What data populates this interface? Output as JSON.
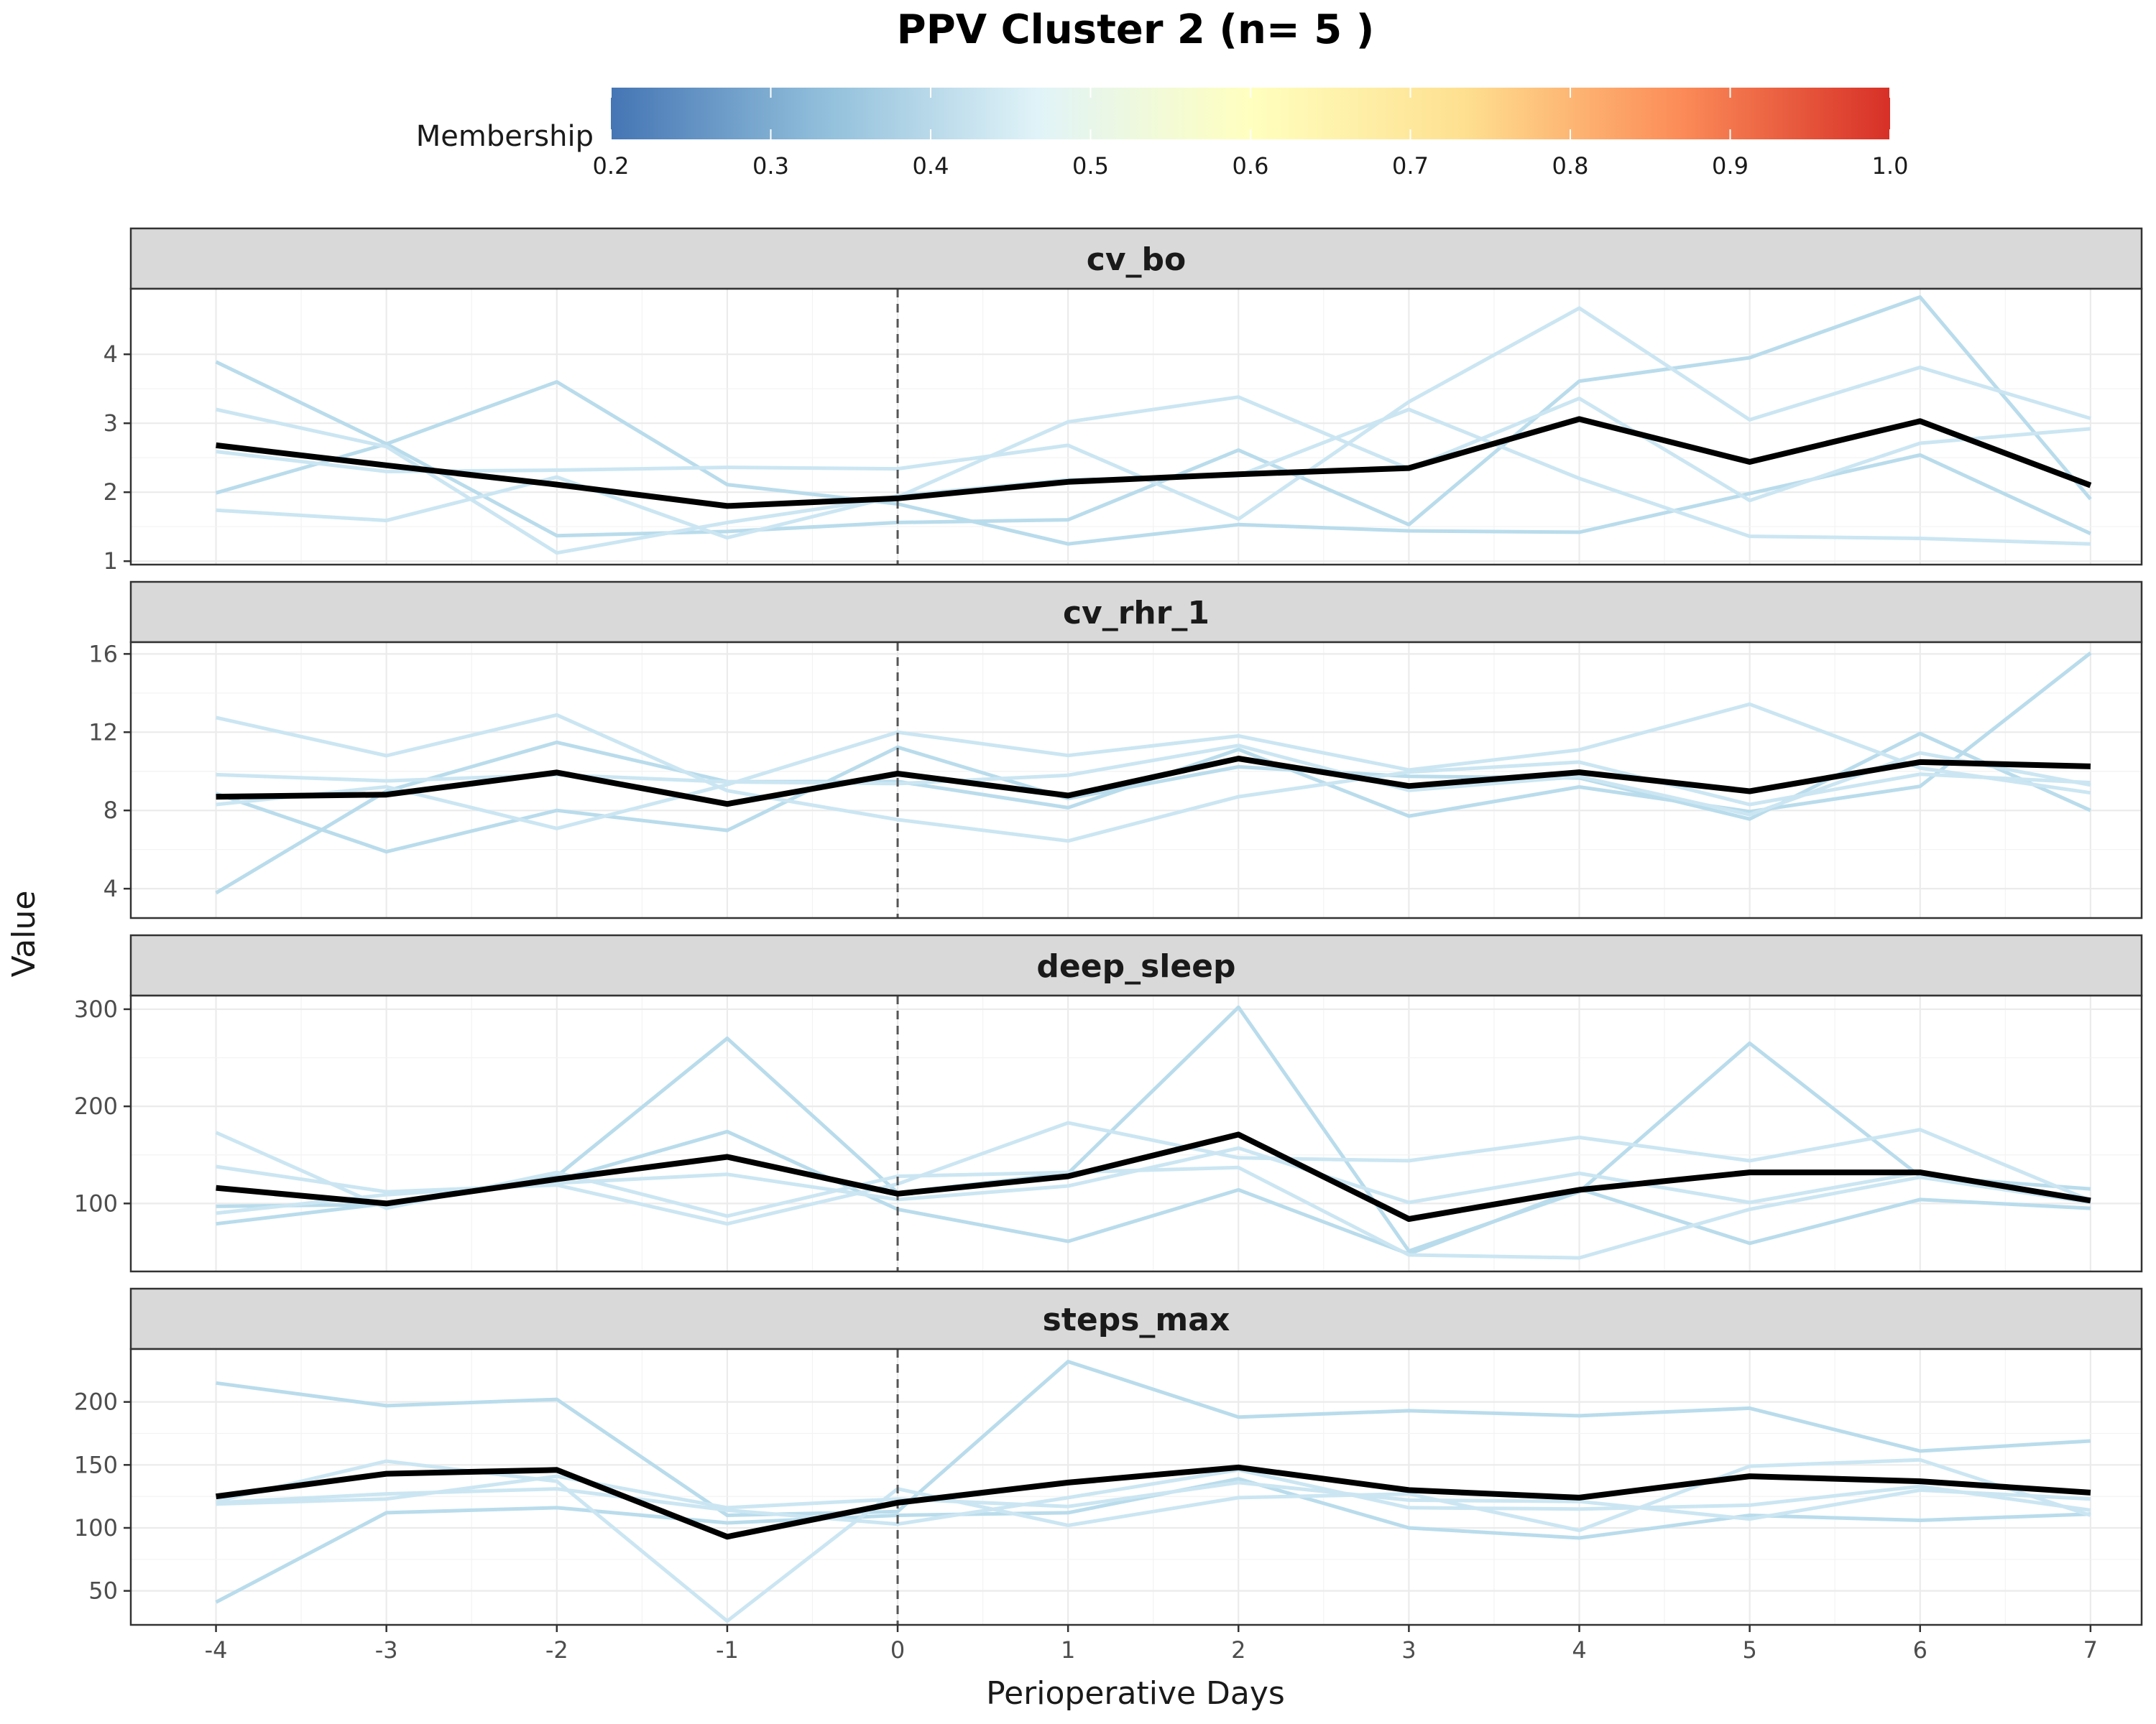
{
  "chart_data": {
    "type": "line",
    "title": "PPV Cluster 2 (n= 5 )",
    "xlabel": "Perioperative Days",
    "ylabel": "Value",
    "x": [
      -4,
      -3,
      -2,
      -1,
      0,
      1,
      2,
      3,
      4,
      5,
      6,
      7
    ],
    "xlim": [
      -4.5,
      7.3
    ],
    "vline_x": 0,
    "legend": {
      "title": "Membership",
      "ticks": [
        "0.2",
        "0.3",
        "0.4",
        "0.5",
        "0.6",
        "0.7",
        "0.8",
        "0.9",
        "1.0"
      ],
      "range": [
        0.2,
        1.0
      ],
      "colors": [
        "#4575b4",
        "#91bfdb",
        "#e0f3f8",
        "#ffffbf",
        "#fee090",
        "#fc8d59",
        "#d73027"
      ]
    },
    "colors": {
      "member": "#cbe6f2",
      "member_strong": "#b9dcec",
      "mean": "#000000"
    },
    "panels": [
      {
        "name": "cv_bo",
        "ylim": [
          0.95,
          4.95
        ],
        "yticks": [
          1,
          2,
          3,
          4
        ],
        "mean": [
          2.68,
          2.39,
          2.11,
          1.8,
          1.91,
          2.15,
          2.26,
          2.35,
          3.06,
          2.44,
          3.03,
          2.1
        ],
        "members": [
          {
            "membership": 0.38,
            "values": [
              3.89,
              2.7,
              1.37,
              1.43,
              1.56,
              1.6,
              2.61,
              1.53,
              3.61,
              3.95,
              4.83,
              1.9
            ]
          },
          {
            "membership": 0.4,
            "values": [
              1.99,
              2.7,
              3.6,
              2.11,
              1.83,
              1.25,
              1.53,
              1.44,
              1.42,
              1.98,
              2.54,
              1.4
            ]
          },
          {
            "membership": 0.43,
            "values": [
              3.2,
              2.66,
              1.12,
              1.56,
              1.93,
              3.02,
              3.38,
              2.34,
              3.36,
              1.88,
              2.71,
              2.92
            ]
          },
          {
            "membership": 0.45,
            "values": [
              2.59,
              2.3,
              2.32,
              2.36,
              2.34,
              2.68,
              1.61,
              3.31,
              4.67,
              3.05,
              3.81,
              3.07
            ]
          },
          {
            "membership": 0.47,
            "values": [
              1.74,
              1.59,
              2.22,
              1.34,
              1.95,
              2.18,
              2.24,
              3.2,
              2.2,
              1.36,
              1.33,
              1.25
            ]
          }
        ]
      },
      {
        "name": "cv_rhr_1",
        "ylim": [
          2.5,
          16.6
        ],
        "yticks": [
          4,
          8,
          12,
          16
        ],
        "mean": [
          8.7,
          8.81,
          9.94,
          8.33,
          9.88,
          8.76,
          10.65,
          9.25,
          9.95,
          8.98,
          10.47,
          10.25
        ],
        "members": [
          {
            "membership": 0.38,
            "values": [
              3.78,
              8.99,
              11.48,
              9.47,
              9.48,
              8.14,
              11.12,
              7.71,
              9.2,
              7.94,
              9.23,
              16.05
            ]
          },
          {
            "membership": 0.4,
            "values": [
              8.86,
              5.89,
              8.0,
              6.98,
              11.23,
              8.61,
              10.23,
              9.74,
              9.66,
              7.56,
              11.93,
              8.0
            ]
          },
          {
            "membership": 0.42,
            "values": [
              12.75,
              10.8,
              12.88,
              9.01,
              7.53,
              6.44,
              8.7,
              9.96,
              10.47,
              8.3,
              9.85,
              9.42
            ]
          },
          {
            "membership": 0.45,
            "values": [
              8.3,
              9.21,
              7.08,
              9.32,
              12.0,
              10.81,
              11.81,
              10.07,
              11.1,
              13.43,
              10.17,
              8.9
            ]
          },
          {
            "membership": 0.47,
            "values": [
              9.83,
              9.51,
              9.82,
              9.46,
              9.37,
              9.8,
              11.32,
              9.03,
              9.73,
              7.78,
              10.94,
              9.3
            ]
          }
        ]
      },
      {
        "name": "deep_sleep",
        "ylim": [
          30,
          314
        ],
        "yticks": [
          100,
          200,
          300
        ],
        "mean": [
          116,
          100,
          125,
          148,
          110,
          128,
          171,
          84,
          114,
          132,
          132,
          103
        ],
        "members": [
          {
            "membership": 0.38,
            "values": [
              79,
              100,
              128,
              270,
              111,
              131,
              302,
              51,
              112,
              265,
              128,
              115
            ]
          },
          {
            "membership": 0.4,
            "values": [
              97,
              99,
              124,
              174,
              94,
              61,
              114,
              48,
              115,
              59,
              104,
              95
            ]
          },
          {
            "membership": 0.42,
            "values": [
              173,
              95,
              132,
              87,
              128,
              132,
              137,
              47,
              44,
              94,
              127,
              101
            ]
          },
          {
            "membership": 0.45,
            "values": [
              138,
              112,
              119,
              79,
              120,
              183,
              147,
              144,
              168,
              144,
              176,
              103
            ]
          },
          {
            "membership": 0.47,
            "values": [
              90,
              109,
              121,
              130,
              104,
              118,
              157,
              101,
              131,
              101,
              132,
              104
            ]
          }
        ]
      },
      {
        "name": "steps_max",
        "ylim": [
          23,
          242
        ],
        "yticks": [
          50,
          100,
          150,
          200
        ],
        "mean": [
          125,
          143,
          146,
          93,
          120,
          136,
          148,
          130,
          124,
          141,
          137,
          128
        ],
        "members": [
          {
            "membership": 0.38,
            "values": [
              41,
              112,
              116,
              104,
              110,
              112,
              139,
              100,
              92,
              110,
              106,
              111
            ]
          },
          {
            "membership": 0.4,
            "values": [
              215,
              197,
              202,
              110,
              113,
              232,
              188,
              193,
              189,
              195,
              161,
              169
            ]
          },
          {
            "membership": 0.42,
            "values": [
              121,
              153,
              137,
              26,
              131,
              102,
              124,
              127,
              98,
              149,
              154,
              110
            ]
          },
          {
            "membership": 0.45,
            "values": [
              120,
              127,
              131,
              114,
              103,
              124,
              146,
              116,
              115,
              118,
              133,
              114
            ]
          },
          {
            "membership": 0.47,
            "values": [
              119,
              123,
              141,
              116,
              123,
              117,
              136,
              122,
              121,
              107,
              130,
              123
            ]
          }
        ]
      }
    ]
  }
}
